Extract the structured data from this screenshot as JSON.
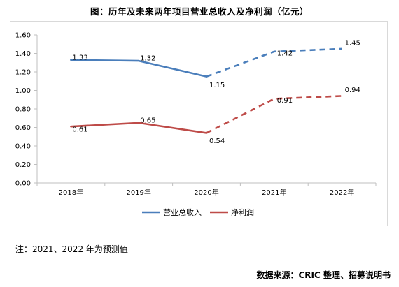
{
  "title": "图：历年及未来两年项目营业总收入及净利润（亿元）",
  "note": "注：2021、2022 年为预测值",
  "source": "数据来源：CRIC 整理、招募说明书",
  "chart_data": {
    "type": "line",
    "categories": [
      "2018年",
      "2019年",
      "2020年",
      "2021年",
      "2022年"
    ],
    "ylim": [
      0,
      1.6
    ],
    "yticks": [
      "0.00",
      "0.20",
      "0.40",
      "0.60",
      "0.80",
      "1.00",
      "1.20",
      "1.40",
      "1.60"
    ],
    "grid": false,
    "legend_position": "bottom",
    "forecast_from_index": 2,
    "series": [
      {
        "name": "营业总收入",
        "values": [
          1.33,
          1.32,
          1.15,
          1.42,
          1.45
        ],
        "labels": [
          "1.33",
          "1.32",
          "1.15",
          "1.42",
          "1.45"
        ],
        "color": "#4a7ebb"
      },
      {
        "name": "净利润",
        "values": [
          0.61,
          0.65,
          0.54,
          0.91,
          0.94
        ],
        "labels": [
          "0.61",
          "0.65",
          "0.54",
          "0.91",
          "0.94"
        ],
        "color": "#be4b48"
      }
    ]
  }
}
